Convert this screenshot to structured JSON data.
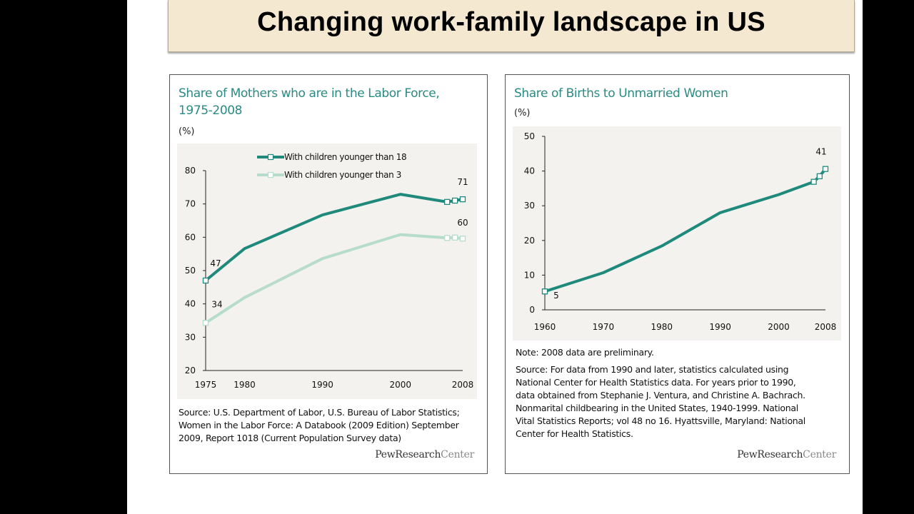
{
  "slide": {
    "title": "Changing work-family landscape in US"
  },
  "left_panel": {
    "title_line1": "Share of Mothers who are in the Labor Force,",
    "title_line2": "1975-2008",
    "unit": "(%)",
    "source": [
      "Source: U.S. Department of Labor, U.S. Bureau of Labor Statistics;",
      "Women in the Labor Force: A Databook (2009 Edition) September",
      "2009, Report 1018 (Current Population Survey data)"
    ],
    "brand_bold": "PewResearch",
    "brand_light": "Center"
  },
  "right_panel": {
    "title": "Share of Births to Unmarried Women",
    "unit": "(%)",
    "note": "Note: 2008 data are preliminary.",
    "source": [
      "Source: For data from 1990 and later, statistics calculated using",
      "National Center for Health Statistics data. For years prior to 1990,",
      "data obtained from Stephanie J. Ventura, and Christine A. Bachrach.",
      "Nonmarital childbearing in the United States, 1940-1999. National",
      "Vital Statistics Reports; vol 48 no 16. Hyattsville, Maryland: National",
      "Center for Health Statistics."
    ],
    "brand_bold": "PewResearch",
    "brand_light": "Center"
  },
  "chart_data": [
    {
      "type": "line",
      "title": "Share of Mothers who are in the Labor Force, 1975-2008",
      "ylabel": "(%)",
      "xlim": [
        1975,
        2008
      ],
      "ylim": [
        20,
        80
      ],
      "x_ticks": [
        1975,
        1980,
        1990,
        2000,
        2008
      ],
      "y_ticks": [
        20,
        30,
        40,
        50,
        60,
        70,
        80
      ],
      "legend_position": "top",
      "colors": {
        "under18": "#1f8a7c",
        "under3": "#b6dccd"
      },
      "series": [
        {
          "name": "With children younger than 18",
          "x": [
            1975,
            1980,
            1990,
            2000,
            2006,
            2007,
            2008
          ],
          "y": [
            47,
            56.6,
            66.7,
            72.9,
            70.6,
            71.0,
            71.4
          ],
          "labels": [
            {
              "x": 1975,
              "text": "47"
            },
            {
              "x": 2008,
              "text": "71"
            }
          ]
        },
        {
          "name": "With children younger than 3",
          "x": [
            1975,
            1980,
            1990,
            2000,
            2006,
            2007,
            2008
          ],
          "y": [
            34.3,
            41.9,
            53.6,
            60.8,
            59.8,
            59.9,
            59.6
          ],
          "labels": [
            {
              "x": 1975,
              "text": "34"
            },
            {
              "x": 2008,
              "text": "60"
            }
          ]
        }
      ]
    },
    {
      "type": "line",
      "title": "Share of Births to Unmarried Women",
      "ylabel": "(%)",
      "xlim": [
        1960,
        2008
      ],
      "ylim": [
        0,
        50
      ],
      "x_ticks": [
        1960,
        1970,
        1980,
        1990,
        2000,
        2008
      ],
      "y_ticks": [
        0,
        10,
        20,
        30,
        40,
        50
      ],
      "colors": {
        "births": "#1f8a7c"
      },
      "series": [
        {
          "x": [
            1960,
            1970,
            1980,
            1990,
            2000,
            2006,
            2007,
            2008
          ],
          "y": [
            5.3,
            10.7,
            18.4,
            28.0,
            33.2,
            36.9,
            38.5,
            40.6
          ],
          "labels": [
            {
              "x": 1960,
              "text": "5"
            },
            {
              "x": 2008,
              "text": "41"
            }
          ]
        }
      ]
    }
  ]
}
